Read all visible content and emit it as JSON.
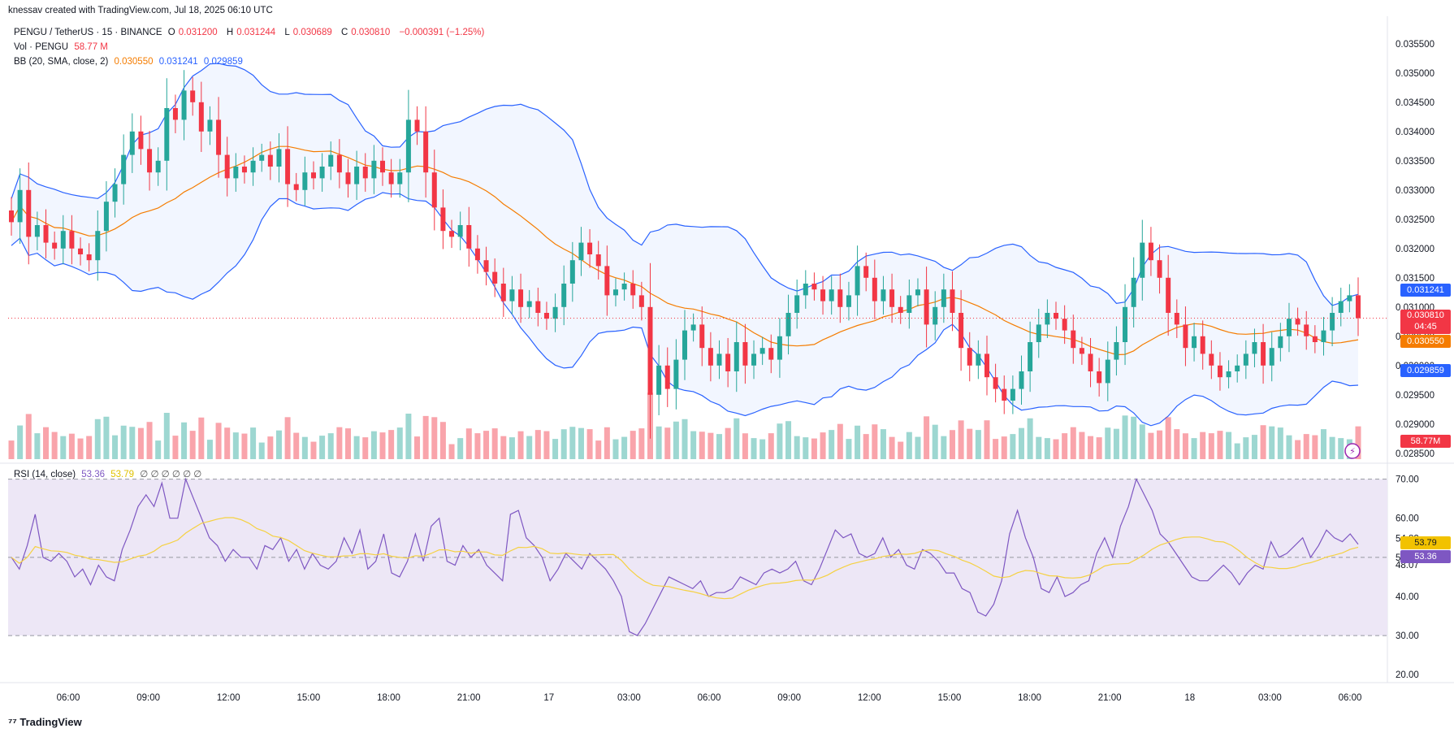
{
  "top_caption": "knessav created with TradingView.com, Jul 18, 2025 06:10 UTC",
  "legend": {
    "symbol": "PENGU / TetherUS · 15 · BINANCE",
    "o_label": "O",
    "o_val": "0.031200",
    "h_label": "H",
    "h_val": "0.031244",
    "l_label": "L",
    "l_val": "0.030689",
    "c_label": "C",
    "c_val": "0.030810",
    "change": "−0.000391 (−1.25%)",
    "vol_label": "Vol · PENGU",
    "vol_val": "58.77 M",
    "bb_label": "BB (20, SMA, close, 2)",
    "bb_mid": "0.030550",
    "bb_up": "0.031241",
    "bb_lo": "0.029859",
    "rsi_label": "RSI (14, close)",
    "rsi_val": "53.36",
    "rsi_ma": "53.79",
    "rsi_rest": "∅ ∅ ∅ ∅ ∅ ∅"
  },
  "price_axis_ticks": [
    "0.035500",
    "0.035000",
    "0.034500",
    "0.034000",
    "0.033500",
    "0.033000",
    "0.032500",
    "0.032000",
    "0.031500",
    "0.031000",
    "0.030500",
    "0.030000",
    "0.029500",
    "0.029000",
    "0.028500"
  ],
  "rsi_axis_ticks": [
    "70.00",
    "60.00",
    "50.00",
    "40.00",
    "30.00",
    "20.00"
  ],
  "rsi_extra_ticks": [
    "54.82",
    "48.07"
  ],
  "tags": {
    "bb_up": "0.031241",
    "price": "0.030810",
    "countdown": "04:45",
    "bb_mid": "0.030550",
    "bb_lo": "0.029859",
    "volume": "58.77M",
    "rsi_val": "53.36",
    "rsi_ma": "53.79"
  },
  "time_axis": [
    "06:00",
    "09:00",
    "12:00",
    "15:00",
    "18:00",
    "21:00",
    "17",
    "03:00",
    "06:00",
    "09:00",
    "12:00",
    "15:00",
    "18:00",
    "21:00",
    "18",
    "03:00",
    "06:00"
  ],
  "brand": "TradingView",
  "colors": {
    "up": "#26a69a",
    "down": "#f23645",
    "bb_band": "#2962ff",
    "bb_basis": "#f57c00",
    "rsi": "#7e57c2",
    "rsi_ma": "#f5d142",
    "rsi_bg": "#ede7f6"
  },
  "chart_data": {
    "type": "candlestick",
    "interval": "15m",
    "price_range": [
      0.0284,
      0.0359
    ],
    "rsi_range": [
      19,
      72
    ],
    "price_series_close": [
      0.03245,
      0.033,
      0.0322,
      0.0324,
      0.0321,
      0.032,
      0.0323,
      0.032,
      0.0319,
      0.0318,
      0.0323,
      0.0328,
      0.0331,
      0.0336,
      0.034,
      0.0337,
      0.0333,
      0.0335,
      0.0344,
      0.0342,
      0.0347,
      0.0345,
      0.034,
      0.0342,
      0.0336,
      0.0332,
      0.0334,
      0.0333,
      0.0335,
      0.0336,
      0.0334,
      0.0337,
      0.0331,
      0.033,
      0.0333,
      0.0332,
      0.0334,
      0.0336,
      0.0333,
      0.0331,
      0.0334,
      0.0332,
      0.0335,
      0.0333,
      0.0331,
      0.0333,
      0.0342,
      0.034,
      0.0333,
      0.0327,
      0.0323,
      0.0322,
      0.0324,
      0.032,
      0.0318,
      0.0316,
      0.0314,
      0.0311,
      0.0313,
      0.031,
      0.0311,
      0.0309,
      0.0308,
      0.031,
      0.0314,
      0.0318,
      0.0321,
      0.0319,
      0.0317,
      0.0312,
      0.0313,
      0.0314,
      0.0312,
      0.031,
      0.0295,
      0.03,
      0.0296,
      0.0301,
      0.0306,
      0.0307,
      0.0303,
      0.03,
      0.0302,
      0.0299,
      0.0304,
      0.03,
      0.0302,
      0.0303,
      0.0301,
      0.0305,
      0.0309,
      0.0312,
      0.0314,
      0.0313,
      0.0311,
      0.0313,
      0.031,
      0.0312,
      0.0317,
      0.0315,
      0.0311,
      0.0313,
      0.031,
      0.0309,
      0.0312,
      0.0313,
      0.0307,
      0.031,
      0.0313,
      0.0309,
      0.0303,
      0.03,
      0.0302,
      0.0298,
      0.0296,
      0.0294,
      0.0296,
      0.0299,
      0.0304,
      0.0307,
      0.0309,
      0.0308,
      0.0306,
      0.0303,
      0.0302,
      0.0299,
      0.0297,
      0.0301,
      0.0304,
      0.031,
      0.0315,
      0.0321,
      0.0318,
      0.0315,
      0.0309,
      0.0307,
      0.0303,
      0.0305,
      0.0302,
      0.03,
      0.0298,
      0.0299,
      0.03,
      0.0302,
      0.0304,
      0.03,
      0.0303,
      0.0305,
      0.0308,
      0.0307,
      0.0305,
      0.0304,
      0.0306,
      0.0309,
      0.0311,
      0.0312,
      0.03081
    ],
    "rsi_series": [
      50,
      47,
      53,
      61,
      50,
      49,
      51,
      49,
      45,
      47,
      43,
      48,
      45,
      44,
      52,
      57,
      63,
      66,
      63,
      69,
      60,
      60,
      70,
      65,
      60,
      55,
      53,
      49,
      52,
      50,
      50,
      47,
      53,
      52,
      55,
      49,
      52,
      47,
      51,
      48,
      47,
      49,
      55,
      51,
      57,
      47,
      49,
      56,
      46,
      45,
      49,
      56,
      49,
      58,
      60,
      49,
      48,
      53,
      50,
      52,
      48,
      46,
      44,
      61,
      62,
      55,
      53,
      50,
      44,
      47,
      51,
      49,
      47,
      51,
      49,
      47,
      44,
      40,
      31,
      30,
      33,
      37,
      41,
      45,
      44,
      43,
      42,
      44,
      40,
      41,
      41,
      42,
      45,
      44,
      43,
      46,
      47,
      46,
      47,
      49,
      44,
      43,
      47,
      52,
      57,
      55,
      56,
      51,
      50,
      51,
      55,
      50,
      52,
      48,
      47,
      52,
      51,
      49,
      46,
      46,
      42,
      41,
      36,
      35,
      38,
      44,
      56,
      62,
      55,
      50,
      42,
      41,
      45,
      40,
      41,
      43,
      44,
      51,
      55,
      50,
      58,
      63,
      70,
      66,
      62,
      56,
      54,
      51,
      48,
      45,
      44,
      44,
      46,
      48,
      46,
      43,
      46,
      48,
      47,
      54,
      50,
      51,
      53,
      55,
      50,
      53,
      57,
      55,
      54,
      56,
      53.36
    ]
  }
}
